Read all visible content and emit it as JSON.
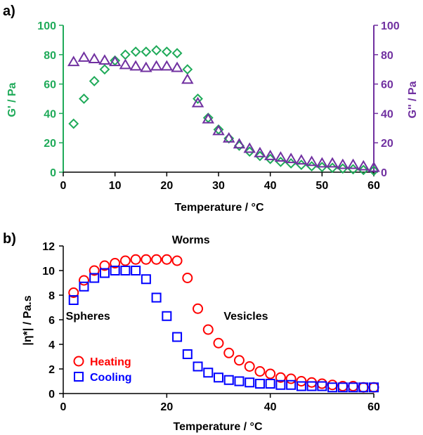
{
  "colors": {
    "green": "#1faa59",
    "purple": "#7030a0",
    "red": "#ff0000",
    "blue": "#0000ff",
    "axis": "#000000"
  },
  "chart_data": [
    {
      "panel_label": "a)",
      "type": "scatter",
      "xlabel": "Temperature / °C",
      "ylabel_left": "G' / Pa",
      "ylabel_right": "G'' / Pa",
      "xlim": [
        0,
        60
      ],
      "ylim": [
        0,
        100
      ],
      "x_ticks": [
        0,
        10,
        20,
        30,
        40,
        50,
        60
      ],
      "y_ticks": [
        0,
        20,
        40,
        60,
        80,
        100
      ],
      "grid": false,
      "series": [
        {
          "name": "G'",
          "marker": "diamond",
          "color": "#1faa59",
          "x": [
            2,
            4,
            6,
            8,
            10,
            12,
            14,
            16,
            18,
            20,
            22,
            24,
            26,
            28,
            30,
            32,
            34,
            36,
            38,
            40,
            42,
            44,
            46,
            48,
            50,
            52,
            54,
            56,
            58,
            60
          ],
          "y": [
            33,
            50,
            62,
            70,
            76,
            80,
            82,
            82,
            83,
            82,
            81,
            70,
            50,
            37,
            29,
            23,
            18,
            14,
            11,
            9,
            7,
            6,
            5,
            4,
            3.5,
            3,
            2.5,
            2,
            1.5,
            1
          ]
        },
        {
          "name": "G''",
          "marker": "triangle",
          "color": "#7030a0",
          "x": [
            2,
            4,
            6,
            8,
            10,
            12,
            14,
            16,
            18,
            20,
            22,
            24,
            26,
            28,
            30,
            32,
            34,
            36,
            38,
            40,
            42,
            44,
            46,
            48,
            50,
            52,
            54,
            56,
            58,
            60
          ],
          "y": [
            75,
            78,
            77,
            76,
            75,
            73,
            72,
            71,
            72,
            72,
            71,
            63,
            47,
            36,
            28,
            23,
            19,
            16,
            13,
            11,
            10,
            9,
            8,
            7,
            6,
            6,
            5,
            5,
            4,
            3
          ]
        }
      ]
    },
    {
      "panel_label": "b)",
      "type": "scatter",
      "xlabel": "Temperature / °C",
      "ylabel": "|η*|  / Pa.s",
      "xlim": [
        0,
        60
      ],
      "ylim": [
        0,
        12
      ],
      "x_ticks": [
        0,
        20,
        40,
        60
      ],
      "y_ticks": [
        0,
        2,
        4,
        6,
        8,
        10,
        12
      ],
      "grid": false,
      "legend": "bottom-left",
      "annotations": [
        {
          "text": "Worms",
          "x": 21,
          "y": 12.2
        },
        {
          "text": "Spheres",
          "x": 0.5,
          "y": 6.0
        },
        {
          "text": "Vesicles",
          "x": 31,
          "y": 6.0
        }
      ],
      "series": [
        {
          "name": "Heating",
          "marker": "circle",
          "color": "#ff0000",
          "x": [
            2,
            4,
            6,
            8,
            10,
            12,
            14,
            16,
            18,
            20,
            22,
            24,
            26,
            28,
            30,
            32,
            34,
            36,
            38,
            40,
            42,
            44,
            46,
            48,
            50,
            52,
            54,
            56,
            58,
            60
          ],
          "y": [
            8.2,
            9.2,
            10.0,
            10.4,
            10.6,
            10.8,
            10.9,
            10.9,
            10.9,
            10.9,
            10.8,
            9.4,
            6.9,
            5.2,
            4.1,
            3.3,
            2.7,
            2.2,
            1.8,
            1.6,
            1.3,
            1.2,
            1.0,
            0.9,
            0.8,
            0.7,
            0.6,
            0.6,
            0.5,
            0.5
          ]
        },
        {
          "name": "Cooling",
          "marker": "square",
          "color": "#0000ff",
          "x": [
            2,
            4,
            6,
            8,
            10,
            12,
            14,
            16,
            18,
            20,
            22,
            24,
            26,
            28,
            30,
            32,
            34,
            36,
            38,
            40,
            42,
            44,
            46,
            48,
            50,
            52,
            54,
            56,
            58,
            60
          ],
          "y": [
            7.6,
            8.7,
            9.4,
            9.8,
            10.0,
            10.0,
            10.0,
            9.3,
            7.8,
            6.3,
            4.6,
            3.2,
            2.2,
            1.7,
            1.3,
            1.1,
            1.0,
            0.9,
            0.8,
            0.8,
            0.7,
            0.7,
            0.6,
            0.6,
            0.6,
            0.5,
            0.5,
            0.5,
            0.5,
            0.5
          ]
        }
      ]
    }
  ]
}
